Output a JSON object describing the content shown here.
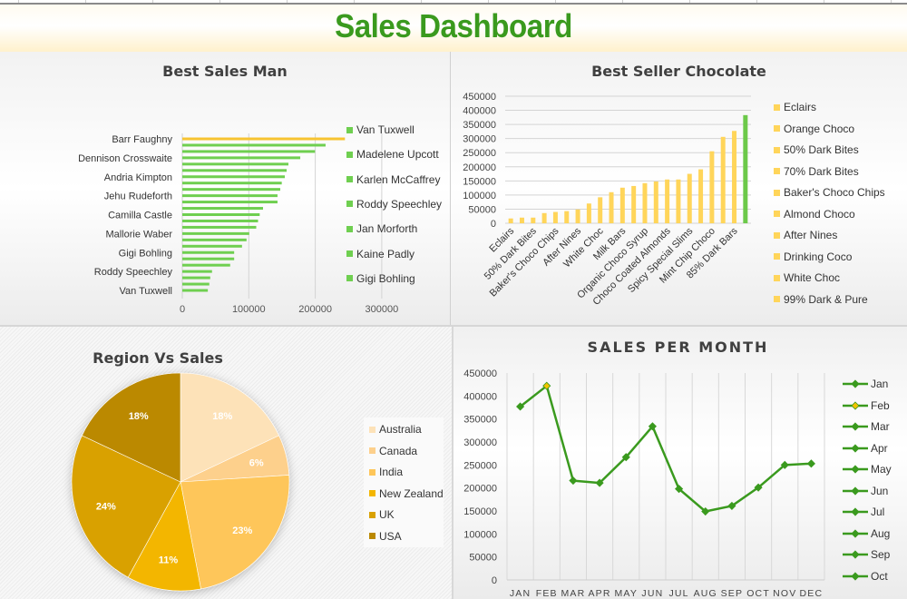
{
  "dashboard": {
    "title": "Sales Dashboard",
    "title_color": "#3a9a1e"
  },
  "colors": {
    "bar_green": "#6fcf50",
    "bar_highlight": "#f7c431",
    "choc_yellow": "#ffd55a",
    "choc_highlight": "#6cc94a",
    "line_green": "#3a9a1e",
    "marker_highlight": "#f2c200",
    "pie": [
      "#fde2b8",
      "#fdd08c",
      "#fec65a",
      "#f3b600",
      "#d9a100",
      "#bb8900"
    ]
  },
  "chart_data": [
    {
      "id": "best-sales-man",
      "type": "bar",
      "orientation": "horizontal",
      "title": "Best Sales Man",
      "xlabel": "",
      "ylabel": "",
      "xlim": [
        0,
        300000
      ],
      "x_ticks": [
        "0",
        "100000",
        "200000",
        "300000"
      ],
      "x_tick_values": [
        0,
        100000,
        200000,
        300000
      ],
      "category_labels_shown": [
        "Barr Faughny",
        "Dennison Crosswaite",
        "Andria Kimpton",
        "Jehu Rudeforth",
        "Camilla Castle",
        "Mallorie Waber",
        "Gigi Bohling",
        "Roddy Speechley",
        "Van Tuxwell"
      ],
      "values": [
        244600,
        215500,
        199600,
        177400,
        159600,
        156900,
        154200,
        149600,
        147300,
        143200,
        143200,
        121400,
        116400,
        113900,
        111200,
        100700,
        96600,
        89800,
        78000,
        78000,
        72000,
        44700,
        42000,
        40600,
        38400
      ],
      "highlight_index": 0,
      "grid": "vertical",
      "legend": [
        "Van Tuxwell",
        "Madelene Upcott",
        "Karlen McCaffrey",
        "Roddy Speechley",
        "Jan Morforth",
        "Kaine Padly",
        "Gigi Bohling"
      ],
      "legend_position": "right"
    },
    {
      "id": "best-seller-chocolate",
      "type": "bar",
      "orientation": "vertical",
      "title": "Best Seller Chocolate",
      "xlabel": "",
      "ylabel": "",
      "ylim": [
        0,
        450000
      ],
      "y_ticks": [
        "0",
        "50000",
        "100000",
        "150000",
        "200000",
        "250000",
        "300000",
        "350000",
        "400000",
        "450000"
      ],
      "category_labels_shown": [
        "Eclairs",
        "50% Dark Bites",
        "Baker's Choco Chips",
        "After Nines",
        "White Choc",
        "Milk Bars",
        "Organic Choco Syrup",
        "Choco Coated Almonds",
        "Spicy Special Slims",
        "Mint Chip Choco",
        "85% Dark Bars"
      ],
      "values": [
        17000,
        20000,
        20000,
        36000,
        40000,
        43000,
        49000,
        70000,
        92000,
        110000,
        126000,
        132000,
        142000,
        148000,
        155000,
        155000,
        175000,
        191000,
        255000,
        306000,
        327000,
        383000
      ],
      "highlight_index": 21,
      "grid": "horizontal",
      "legend": [
        "Eclairs",
        "Orange Choco",
        "50% Dark Bites",
        "70% Dark Bites",
        "Baker's Choco Chips",
        "Almond Choco",
        "After Nines",
        "Drinking Coco",
        "White Choc",
        "99% Dark & Pure"
      ],
      "legend_position": "right"
    },
    {
      "id": "region-vs-sales",
      "type": "pie",
      "title": "Region Vs Sales",
      "labels": [
        "Australia",
        "Canada",
        "India",
        "New Zealand",
        "UK",
        "USA"
      ],
      "values": [
        18,
        6,
        23,
        11,
        24,
        18
      ],
      "data_labels": [
        "18%",
        "6%",
        "23%",
        "11%",
        "24%",
        "18%"
      ],
      "legend_position": "right"
    },
    {
      "id": "sales-per-month",
      "type": "line",
      "title": "SALES PER MONTH",
      "xlabel": "",
      "ylabel": "",
      "categories": [
        "JAN",
        "FEB",
        "MAR",
        "APR",
        "MAY",
        "JUN",
        "JUL",
        "AUG",
        "SEP",
        "OCT",
        "NOV",
        "DEC"
      ],
      "values": [
        377000,
        422000,
        216000,
        211000,
        267000,
        334000,
        198000,
        149000,
        161000,
        201000,
        250000,
        253000
      ],
      "ylim": [
        0,
        450000
      ],
      "y_ticks": [
        "0",
        "50000",
        "100000",
        "150000",
        "200000",
        "250000",
        "300000",
        "350000",
        "400000",
        "450000"
      ],
      "highlight_index": 1,
      "grid": "vertical",
      "legend": [
        "Jan",
        "Feb",
        "Mar",
        "Apr",
        "May",
        "Jun",
        "Jul",
        "Aug",
        "Sep",
        "Oct"
      ],
      "legend_highlight_index": 1,
      "legend_position": "right"
    }
  ]
}
